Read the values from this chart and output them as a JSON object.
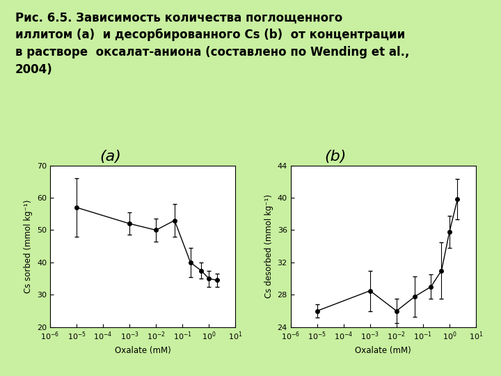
{
  "bg_color": "#c8f0a0",
  "title_text": "Рис. 6.5. Зависимость количества поглощенного\nиллитом (а)  и десорбированного Cs (b)  от концентрации\nв растворе  оксалат-аниона (составлено по Wending et al.,\n2004)",
  "label_a": "(a)",
  "label_b": "(b)",
  "plot_a": {
    "x": [
      1e-05,
      0.001,
      0.01,
      0.05,
      0.2,
      0.5,
      1.0,
      2.0
    ],
    "y": [
      57.0,
      52.0,
      50.0,
      53.0,
      40.0,
      37.5,
      35.0,
      34.5
    ],
    "yerr": [
      9.0,
      3.5,
      3.5,
      5.0,
      4.5,
      2.5,
      2.5,
      2.0
    ],
    "xlabel": "Oxalate (mM)",
    "ylabel": "Cs sorbed (mmol kg⁻¹)",
    "ylim": [
      20,
      70
    ],
    "yticks": [
      20,
      30,
      40,
      50,
      60,
      70
    ],
    "xlim": [
      1e-06,
      10.0
    ]
  },
  "plot_b": {
    "x": [
      1e-05,
      0.001,
      0.01,
      0.05,
      0.2,
      0.5,
      1.0,
      2.0
    ],
    "y": [
      26.0,
      28.5,
      26.0,
      27.8,
      29.0,
      31.0,
      35.8,
      39.8
    ],
    "yerr": [
      0.8,
      2.5,
      1.5,
      2.5,
      1.5,
      3.5,
      2.0,
      2.5
    ],
    "xlabel": "Oxalate (mM)",
    "ylabel": "Cs desorbed (mmol kg⁻¹)",
    "ylim": [
      24,
      44
    ],
    "yticks": [
      24,
      28,
      32,
      36,
      40,
      44
    ],
    "xlim": [
      1e-06,
      10.0
    ]
  },
  "xticks": [
    1e-06,
    1e-05,
    0.0001,
    0.001,
    0.01,
    0.1,
    1.0,
    10.0
  ],
  "title_fontsize": 12,
  "label_fontsize": 16,
  "axis_fontsize": 8.5,
  "tick_fontsize": 8
}
